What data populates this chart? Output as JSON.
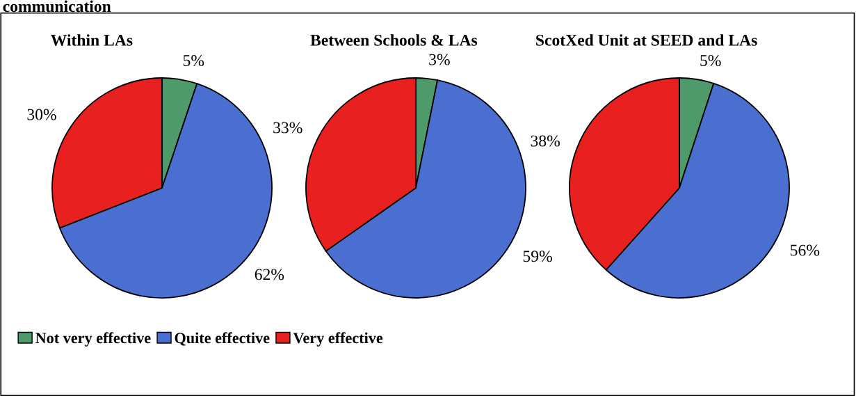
{
  "chart_data": [
    {
      "type": "pie",
      "title": "Within LAs",
      "annotations": [
        "communication"
      ],
      "categories": [
        "Not very effective",
        "Quite effective",
        "Very effective"
      ],
      "values": [
        5,
        62,
        30
      ],
      "colors": [
        "#4e9a6b",
        "#4a6fd0",
        "#e8201f"
      ],
      "value_labels": [
        "5%",
        "62%",
        "30%"
      ],
      "legend": "bottom"
    },
    {
      "type": "pie",
      "title": "Between Schools & LAs",
      "values": [
        3,
        59,
        33
      ],
      "colors": [
        "#4e9a6b",
        "#4a6fd0",
        "#e8201f"
      ],
      "value_labels": [
        "3%",
        "59%",
        "33%"
      ]
    },
    {
      "type": "pie",
      "title": "ScotXed Unit at SEED and LAs",
      "values": [
        5,
        56,
        38
      ],
      "colors": [
        "#4e9a6b",
        "#4a6fd0",
        "#e8201f"
      ],
      "value_labels": [
        "5%",
        "56%",
        "38%"
      ]
    }
  ]
}
